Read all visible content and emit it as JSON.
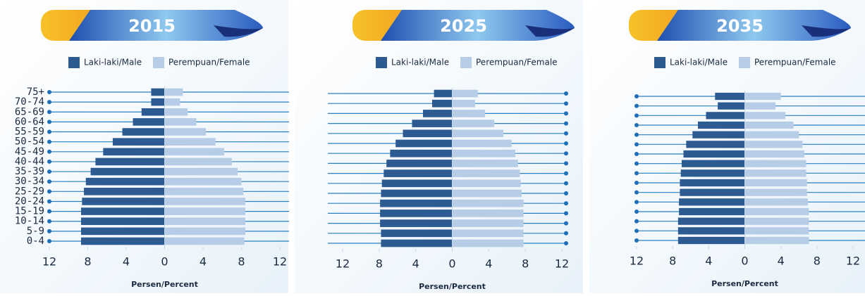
{
  "chart_data": [
    {
      "type": "pyramid",
      "title": "2015",
      "categories": [
        "0-4",
        "5-9",
        "10-14",
        "15-19",
        "20-24",
        "25-29",
        "30-34",
        "35-39",
        "40-44",
        "45-49",
        "50-54",
        "55-59",
        "60-64",
        "65-69",
        "70-74",
        "75+"
      ],
      "series": [
        {
          "name": "Laki-laki/Male",
          "color": "#2e5a92",
          "values": [
            -8.7,
            -8.7,
            -8.7,
            -8.7,
            -8.6,
            -8.4,
            -8.2,
            -7.7,
            -7.2,
            -6.4,
            -5.4,
            -4.4,
            -3.3,
            -2.4,
            -1.4,
            -1.4
          ]
        },
        {
          "name": "Perempuan/Female",
          "color": "#b7cce6",
          "values": [
            8.3,
            8.4,
            8.4,
            8.4,
            8.4,
            8.2,
            8.0,
            7.6,
            7.0,
            6.2,
            5.3,
            4.3,
            3.3,
            2.4,
            1.6,
            1.9
          ]
        }
      ],
      "xlim": [
        -12,
        12
      ],
      "xticks": [
        {
          "value": -12,
          "label": "12"
        },
        {
          "value": -8,
          "label": "8"
        },
        {
          "value": -4,
          "label": "4"
        },
        0,
        4,
        8,
        12
      ],
      "xlabel": "Persen/Percent"
    },
    {
      "type": "pyramid",
      "title": "2025",
      "categories": [
        null,
        null,
        null,
        null,
        null,
        null,
        null,
        null,
        null,
        null,
        null,
        null,
        null,
        null,
        null,
        null
      ],
      "series": [
        {
          "name": "Laki-laki/Male",
          "color": "#2e5a92",
          "values": [
            -7.8,
            -7.8,
            -7.9,
            -7.9,
            -7.9,
            -7.8,
            -7.7,
            -7.5,
            -7.2,
            -6.8,
            -6.2,
            -5.4,
            -4.4,
            -3.2,
            -2.2,
            -2.0
          ]
        },
        {
          "name": "Perempuan/Female",
          "color": "#b7cce6",
          "values": [
            7.8,
            7.8,
            7.8,
            7.8,
            7.8,
            7.6,
            7.5,
            7.4,
            7.2,
            6.9,
            6.5,
            5.6,
            4.6,
            3.6,
            2.5,
            2.8
          ]
        }
      ],
      "xlim": [
        -12,
        12
      ],
      "xticks": [
        {
          "value": -12,
          "label": "12"
        },
        {
          "value": -8,
          "label": "8"
        },
        {
          "value": -4,
          "label": "4"
        },
        0,
        4,
        8,
        12
      ],
      "xlabel": "Persen/Percent"
    },
    {
      "type": "pyramid",
      "title": "2035",
      "categories": [
        null,
        null,
        null,
        null,
        null,
        null,
        null,
        null,
        null,
        null,
        null,
        null,
        null,
        null,
        null,
        null
      ],
      "series": [
        {
          "name": "Laki-laki/Male",
          "color": "#2e5a92",
          "values": [
            -7.4,
            -7.4,
            -7.4,
            -7.3,
            -7.3,
            -7.2,
            -7.2,
            -7.1,
            -7.0,
            -6.8,
            -6.5,
            -5.8,
            -5.2,
            -4.3,
            -3.0,
            -3.3
          ]
        },
        {
          "name": "Perempuan/Female",
          "color": "#b7cce6",
          "values": [
            7.1,
            7.1,
            7.1,
            7.1,
            7.0,
            6.9,
            6.9,
            6.8,
            6.8,
            6.6,
            6.4,
            6.0,
            5.4,
            4.5,
            3.4,
            4.0
          ]
        }
      ],
      "xlim": [
        -12,
        12
      ],
      "xticks": [
        {
          "value": -12,
          "label": "12"
        },
        {
          "value": -8,
          "label": "8"
        },
        {
          "value": -4,
          "label": "4"
        },
        0,
        4,
        8,
        12
      ],
      "xlabel": "Persen/Percent"
    }
  ]
}
